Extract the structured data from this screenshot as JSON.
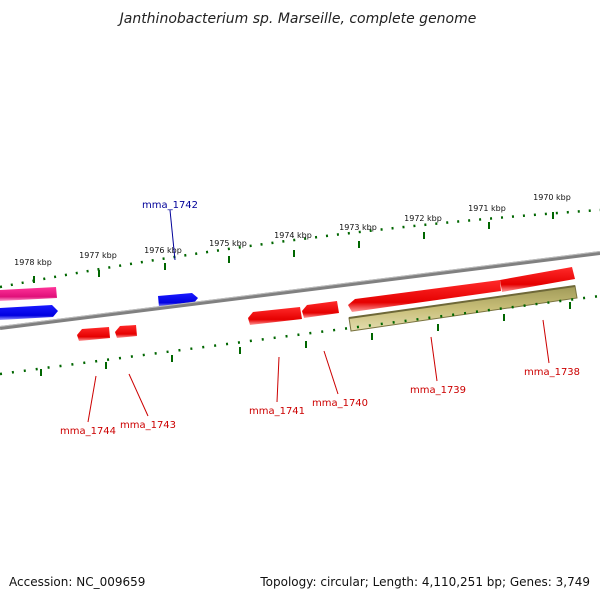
{
  "title": "Janthinobacterium sp. Marseille, complete genome",
  "footer": {
    "accession": "Accession: NC_009659",
    "summary": "Topology: circular; Length: 4,110,251 bp; Genes: 3,749"
  },
  "scale_labels": [
    "1978 kbp",
    "1977 kbp",
    "1976 kbp",
    "1975 kbp",
    "1974 kbp",
    "1973 kbp",
    "1972 kbp",
    "1971 kbp",
    "1970 kbp"
  ],
  "gene_labels": {
    "mma_1742": "mma_1742",
    "mma_1744": "mma_1744",
    "mma_1743": "mma_1743",
    "mma_1741": "mma_1741",
    "mma_1740": "mma_1740",
    "mma_1739": "mma_1739",
    "mma_1738": "mma_1738"
  },
  "colors": {
    "forward_strand": "#0000ee",
    "reverse_strand": "#ee0000",
    "rna_feature": "#ee1188",
    "repeat_region": "#c8be78",
    "backbone": "#808080",
    "scale_ticks": "#006600",
    "forward_label": "#000099",
    "reverse_label": "#cc0000"
  }
}
